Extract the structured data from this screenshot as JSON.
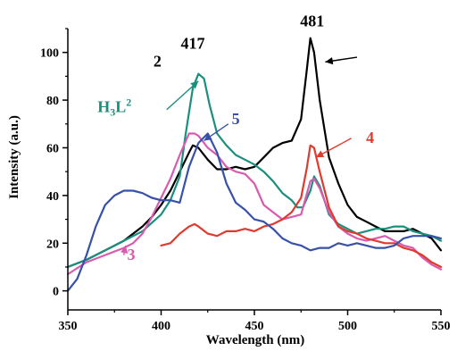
{
  "chart_data": {
    "type": "line",
    "xlabel": "Wavelength (nm)",
    "ylabel": "Intensity (a.u.)",
    "xlim": [
      350,
      550
    ],
    "ylim": [
      -8,
      110
    ],
    "x_ticks": [
      "350",
      "400",
      "450",
      "500",
      "550"
    ],
    "y_ticks": [
      "0",
      "20",
      "40",
      "60",
      "80",
      "100"
    ],
    "x_tick_values": [
      350,
      400,
      450,
      500,
      550
    ],
    "y_tick_values": [
      0,
      20,
      40,
      60,
      80,
      100
    ],
    "grid": false,
    "peak_annotations": [
      {
        "text": "417",
        "x": 417,
        "y": 91
      },
      {
        "text": "481",
        "x": 481,
        "y": 106
      }
    ],
    "series": [
      {
        "name": "2",
        "label_parts": {
          "main": "2"
        },
        "color": "#000000",
        "x": [
          350,
          360,
          370,
          380,
          390,
          395,
          400,
          405,
          410,
          415,
          417,
          420,
          425,
          430,
          435,
          440,
          445,
          450,
          455,
          460,
          465,
          470,
          475,
          478,
          480,
          482,
          485,
          490,
          495,
          500,
          505,
          510,
          515,
          520,
          525,
          530,
          535,
          540,
          545,
          550
        ],
        "y": [
          10,
          13,
          17,
          21,
          27,
          31,
          36,
          42,
          50,
          58,
          61,
          60,
          55,
          51,
          51,
          52,
          51,
          52,
          56,
          60,
          62,
          63,
          72,
          92,
          106,
          100,
          80,
          56,
          45,
          36,
          31,
          29,
          27,
          25,
          25,
          25,
          26,
          24,
          22,
          17
        ]
      },
      {
        "name": "H3L2",
        "label_parts": {
          "main": "H",
          "sub": "3",
          "main2": "L",
          "sup": "2"
        },
        "color": "#1b8f7d",
        "x": [
          350,
          360,
          370,
          380,
          390,
          400,
          405,
          410,
          413,
          417,
          420,
          423,
          426,
          430,
          435,
          440,
          445,
          450,
          455,
          460,
          465,
          470,
          473,
          476,
          480,
          482,
          485,
          490,
          495,
          500,
          505,
          510,
          515,
          520,
          525,
          530,
          535,
          540,
          545,
          550
        ],
        "y": [
          10,
          13,
          17,
          21,
          25,
          32,
          38,
          48,
          65,
          85,
          91,
          89,
          78,
          66,
          61,
          57,
          55,
          53,
          50,
          46,
          41,
          38,
          35,
          35,
          42,
          48,
          44,
          32,
          28,
          26,
          24,
          25,
          26,
          26,
          27,
          27,
          25,
          24,
          23,
          21
        ]
      },
      {
        "name": "3",
        "label_parts": {
          "main": "3"
        },
        "color": "#d85bb0",
        "x": [
          350,
          360,
          370,
          380,
          385,
          390,
          395,
          400,
          405,
          410,
          415,
          418,
          420,
          425,
          430,
          435,
          440,
          445,
          450,
          455,
          460,
          465,
          470,
          475,
          480,
          482,
          485,
          490,
          495,
          500,
          505,
          510,
          515,
          520,
          525,
          530,
          535,
          540,
          545,
          550
        ],
        "y": [
          7,
          12,
          15,
          18,
          20,
          24,
          31,
          39,
          47,
          57,
          66,
          66,
          65,
          60,
          57,
          52,
          50,
          49,
          45,
          36,
          33,
          30,
          31,
          32,
          46,
          47,
          43,
          33,
          27,
          24,
          22,
          21,
          22,
          23,
          21,
          19,
          18,
          14,
          11,
          9
        ]
      },
      {
        "name": "4",
        "label_parts": {
          "main": "4"
        },
        "color": "#e03a2f",
        "x": [
          400,
          405,
          410,
          415,
          418,
          420,
          425,
          430,
          435,
          440,
          445,
          450,
          455,
          460,
          465,
          470,
          475,
          478,
          480,
          482,
          485,
          490,
          495,
          500,
          505,
          510,
          515,
          520,
          525,
          530,
          535,
          540,
          545,
          550
        ],
        "y": [
          19,
          20,
          24,
          27,
          28,
          27,
          24,
          23,
          25,
          25,
          26,
          25,
          27,
          28,
          30,
          33,
          39,
          51,
          61,
          60,
          50,
          35,
          27,
          25,
          24,
          22,
          21,
          20,
          20,
          18,
          17,
          15,
          12,
          10
        ]
      },
      {
        "name": "5",
        "label_parts": {
          "main": "5"
        },
        "color": "#3751a8",
        "x": [
          350,
          355,
          360,
          365,
          370,
          375,
          380,
          385,
          390,
          395,
          400,
          405,
          410,
          415,
          420,
          425,
          430,
          435,
          440,
          445,
          450,
          455,
          460,
          465,
          470,
          475,
          480,
          485,
          490,
          495,
          500,
          505,
          510,
          515,
          520,
          525,
          530,
          535,
          540,
          545,
          550
        ],
        "y": [
          0,
          5,
          15,
          27,
          36,
          40,
          42,
          42,
          41,
          39,
          38,
          38,
          37,
          52,
          62,
          66,
          58,
          45,
          37,
          34,
          30,
          29,
          26,
          22,
          20,
          19,
          17,
          18,
          18,
          20,
          19,
          20,
          19,
          18,
          18,
          19,
          22,
          23,
          23,
          23,
          22
        ]
      }
    ]
  }
}
